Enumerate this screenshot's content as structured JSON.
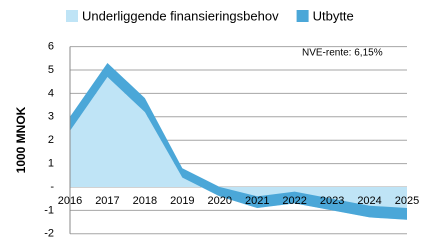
{
  "chart_data": {
    "type": "stacked-area",
    "y_label": "1000 MNOK",
    "annotation": "NVE-rente:  6,15%",
    "categories": [
      "2016",
      "2017",
      "2018",
      "2019",
      "2020",
      "2021",
      "2022",
      "2023",
      "2024",
      "2025"
    ],
    "series": [
      {
        "name": "Underliggende finansieringsbehov",
        "color": "#bfe4f6",
        "values": [
          2.4,
          4.7,
          3.2,
          0.4,
          -0.4,
          -0.9,
          -0.7,
          -1.0,
          -1.3,
          -1.4
        ]
      },
      {
        "name": "Utbytte",
        "color": "#4ba7d8",
        "values": [
          0.6,
          0.6,
          0.6,
          0.4,
          0.4,
          0.5,
          0.5,
          0.5,
          0.5,
          0.5
        ]
      }
    ],
    "ylim": [
      -2,
      6
    ],
    "yticks": [
      -2,
      -1,
      {
        "value": 0,
        "label": "-"
      },
      1,
      2,
      3,
      4,
      5,
      6
    ],
    "grid": true
  }
}
